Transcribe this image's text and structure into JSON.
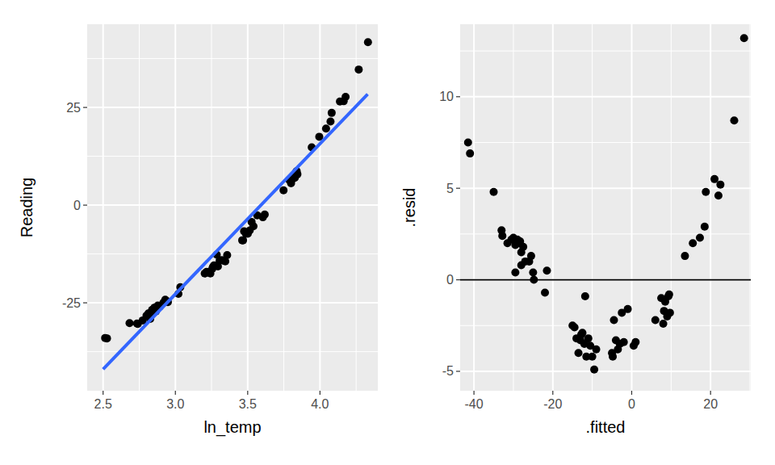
{
  "chart_data": [
    {
      "type": "scatter",
      "x_label": "ln_temp",
      "y_label": "Reading",
      "color": "#000000",
      "grid": true,
      "xlim": [
        2.39,
        4.4
      ],
      "ylim": [
        -47.5,
        46.3
      ],
      "xticks": [
        2.5,
        {
          "value": 3,
          "label": "3.0"
        },
        3.5,
        {
          "value": 4,
          "label": "4.0"
        }
      ],
      "yticks": [
        -25,
        0,
        25
      ],
      "x": [
        2.514,
        2.527,
        2.683,
        2.735,
        2.74,
        2.774,
        2.8,
        2.813,
        2.826,
        2.839,
        2.852,
        2.865,
        2.857,
        2.878,
        2.865,
        2.891,
        2.826,
        2.917,
        2.93,
        2.943,
        2.948,
        3.021,
        3.034,
        3.203,
        3.216,
        3.229,
        3.242,
        3.255,
        3.26,
        3.268,
        3.281,
        3.286,
        3.294,
        3.306,
        3.319,
        3.332,
        3.345,
        3.358,
        3.462,
        3.468,
        3.475,
        3.488,
        3.501,
        3.514,
        3.527,
        3.54,
        3.566,
        3.605,
        3.618,
        3.748,
        3.787,
        3.8,
        3.805,
        3.813,
        3.826,
        3.834,
        3.844,
        3.839,
        3.943,
        3.995,
        4.042,
        4.073,
        4.081,
        4.138,
        4.164,
        4.177,
        4.268,
        4.332
      ],
      "values": [
        -34.0,
        -34.1,
        -30.2,
        -30.3,
        -30.4,
        -29.5,
        -28.3,
        -27.7,
        -27.6,
        -26.8,
        -26.5,
        -26.5,
        -26.2,
        -25.7,
        -27.2,
        -26.0,
        -29.1,
        -25.0,
        -24.2,
        -24.6,
        -24.8,
        -22.7,
        -21.0,
        -17.5,
        -17.1,
        -17.2,
        -17.5,
        -16.3,
        -15.8,
        -15.4,
        -15.5,
        -12.7,
        -15.7,
        -14.2,
        -14.1,
        -14.2,
        -14.4,
        -12.8,
        -9.0,
        -9.0,
        -6.7,
        -7.3,
        -7.3,
        -6.5,
        -4.3,
        -5.4,
        -2.6,
        -3.1,
        -2.4,
        3.8,
        6.5,
        5.6,
        6.5,
        7.3,
        7.0,
        8.4,
        7.9,
        8.7,
        14.8,
        17.5,
        19.6,
        21.4,
        23.6,
        26.5,
        26.6,
        27.7,
        34.7,
        41.7
      ],
      "fit": {
        "x": [
          2.5,
          4.33
        ],
        "values": [
          -42.0,
          28.4
        ],
        "color": "#3366ff"
      }
    },
    {
      "type": "scatter",
      "x_label": ".fitted",
      "y_label": ".resid",
      "color": "#000000",
      "grid": true,
      "xlim": [
        -43.5,
        30.2
      ],
      "ylim": [
        -6.06,
        13.96
      ],
      "xticks": [
        -40,
        -20,
        0,
        20
      ],
      "yticks": [
        -5,
        0,
        5,
        10
      ],
      "x": [
        -41.5,
        -41,
        -35,
        -33,
        -32.8,
        -31.5,
        -30.5,
        -30,
        -29.5,
        -29,
        -28.5,
        -28,
        -28.3,
        -27.5,
        -28,
        -27,
        -29.5,
        -26,
        -25.5,
        -25,
        -24.8,
        -22,
        -21.5,
        -15,
        -14.5,
        -14,
        -13.5,
        -13,
        -12.8,
        -12.5,
        -12,
        -11.8,
        -11.5,
        -11,
        -10.5,
        -10,
        -9.5,
        -9,
        -5,
        -4.8,
        -4.5,
        -4,
        -3.5,
        -3,
        -2.5,
        -2,
        -1,
        0.5,
        1,
        6,
        7.5,
        8,
        8.2,
        8.5,
        9,
        9.3,
        9.7,
        9.5,
        13.5,
        15.5,
        17.3,
        18.5,
        18.8,
        21,
        22,
        22.5,
        26,
        28.5
      ],
      "values": [
        7.5,
        6.9,
        4.8,
        2.7,
        2.4,
        2.0,
        2.2,
        2.3,
        1.9,
        2.2,
        2.0,
        1.5,
        2.1,
        1.8,
        0.8,
        1.0,
        0.4,
        1.0,
        1.3,
        0.4,
        0.0,
        -0.7,
        0.5,
        -2.5,
        -2.6,
        -3.2,
        -4.0,
        -3.3,
        -3.0,
        -2.9,
        -3.5,
        -0.9,
        -4.2,
        -3.2,
        -3.6,
        -4.2,
        -4.9,
        -3.8,
        -4.0,
        -4.2,
        -2.2,
        -3.3,
        -3.8,
        -3.5,
        -1.8,
        -3.4,
        -1.6,
        -3.6,
        -3.4,
        -2.2,
        -1.0,
        -2.4,
        -1.7,
        -1.2,
        -2.0,
        -0.9,
        -1.8,
        -0.8,
        1.3,
        2.0,
        2.3,
        2.9,
        4.8,
        5.5,
        4.6,
        5.2,
        8.7,
        13.2
      ],
      "hline": {
        "value": 0,
        "color": "#000000"
      }
    }
  ]
}
